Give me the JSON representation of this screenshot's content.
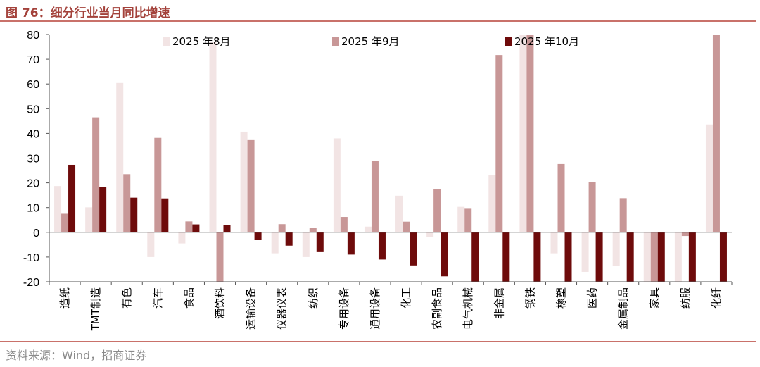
{
  "header": {
    "figure_title": "图 76：细分行业当月同比增速"
  },
  "footer": {
    "source": "资料来源：Wind，招商证券"
  },
  "chart_data": {
    "type": "bar",
    "ylim": [
      -20,
      80
    ],
    "yticks": [
      -20,
      -10,
      0,
      10,
      20,
      30,
      40,
      50,
      60,
      70,
      80
    ],
    "grid": false,
    "legend_position": "top",
    "categories": [
      "造纸",
      "TMT制造",
      "有色",
      "汽车",
      "食品",
      "酒饮料",
      "运输设备",
      "仪器仪表",
      "纺织",
      "专用设备",
      "通用设备",
      "化工",
      "农副食品",
      "电气机械",
      "非金属",
      "钢铁",
      "橡塑",
      "医药",
      "金属制品",
      "家具",
      "纺服",
      "化纤"
    ],
    "series": [
      {
        "name": "2025 年8月",
        "color": "#f2e4e4",
        "values": [
          18.7,
          10.1,
          60.4,
          -10.0,
          -4.5,
          77.0,
          40.7,
          -8.5,
          -10.0,
          38.0,
          2.3,
          14.8,
          -2.0,
          10.3,
          23.2,
          80.0,
          -8.5,
          -16.0,
          -13.5,
          -20.0,
          -20.0,
          43.6
        ]
      },
      {
        "name": "2025 年9月",
        "color": "#c89797",
        "values": [
          7.5,
          46.5,
          23.5,
          38.2,
          4.4,
          -20.0,
          37.3,
          3.3,
          1.8,
          6.2,
          29.0,
          4.3,
          17.6,
          9.8,
          71.7,
          80.0,
          27.6,
          20.3,
          13.8,
          -20.0,
          -1.5,
          80.0
        ]
      },
      {
        "name": "2025 年10月",
        "color": "#6e0b0b",
        "values": [
          27.3,
          18.3,
          14.0,
          13.7,
          3.2,
          3.0,
          -3.0,
          -5.4,
          -8.0,
          -9.0,
          -11.0,
          -13.4,
          -17.8,
          -20.0,
          -20.0,
          -20.0,
          -20.0,
          -20.0,
          -20.0,
          -20.0,
          -20.0,
          -20.0
        ]
      }
    ]
  }
}
